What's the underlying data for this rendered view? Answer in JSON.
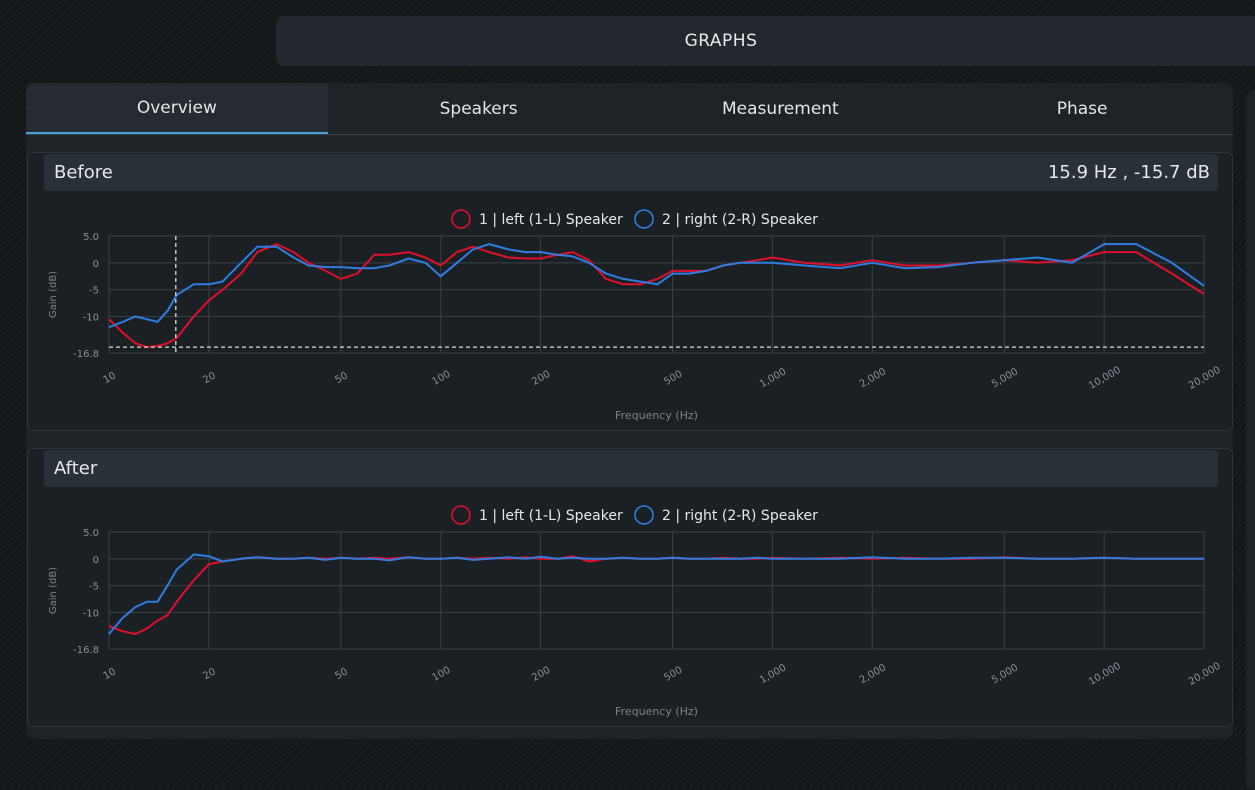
{
  "header": {
    "title": "GRAPHS"
  },
  "tabs": [
    "Overview",
    "Speakers",
    "Measurement",
    "Phase"
  ],
  "chart_data": [
    {
      "type": "line",
      "title": "Before",
      "cursor": {
        "x": 15.9,
        "y": -15.7,
        "label": "15.9 Hz , -15.7 dB"
      },
      "xlabel": "Frequency (Hz)",
      "ylabel": "Gain (dB)",
      "xscale": "log",
      "grid": true,
      "xlim": [
        10,
        20000
      ],
      "ylim": [
        -16.8,
        5
      ],
      "xticks": [
        10,
        20,
        50,
        100,
        200,
        500,
        {
          "value": 1000,
          "label": "1,000"
        },
        {
          "value": 2000,
          "label": "2,000"
        },
        {
          "value": 5000,
          "label": "5,000"
        },
        {
          "value": 10000,
          "label": "10,000"
        },
        {
          "value": 20000,
          "label": "20,000"
        }
      ],
      "yticks": [
        {
          "value": 5,
          "label": "5.0"
        },
        0,
        -5,
        -10,
        -16.8
      ],
      "x": [
        10,
        11,
        12,
        13,
        14,
        15,
        16,
        18,
        20,
        22,
        25,
        28,
        32,
        36,
        40,
        45,
        50,
        56,
        63,
        70,
        80,
        90,
        100,
        112,
        125,
        140,
        160,
        180,
        200,
        225,
        250,
        280,
        315,
        355,
        400,
        450,
        500,
        560,
        630,
        710,
        800,
        900,
        1000,
        1250,
        1600,
        2000,
        2500,
        3150,
        4000,
        5000,
        6300,
        8000,
        10000,
        12500,
        16000,
        20000
      ],
      "series": [
        {
          "name": "1 | left (1-L) Speaker",
          "color": "#e0102a",
          "values": [
            -10.5,
            -13,
            -15,
            -15.7,
            -15.5,
            -15,
            -14,
            -10,
            -7,
            -5,
            -2,
            2,
            3.5,
            2,
            0,
            -1.5,
            -3,
            -2,
            1.5,
            1.5,
            2,
            1,
            -0.5,
            2,
            3,
            2,
            1,
            0.8,
            0.8,
            1.5,
            2,
            0.5,
            -3,
            -4,
            -4,
            -3,
            -1.5,
            -1.5,
            -1.5,
            -0.5,
            0,
            0.5,
            1,
            0,
            -0.5,
            0.5,
            -0.5,
            -0.5,
            0,
            0.5,
            0,
            0.5,
            2,
            2,
            -2,
            -5.8
          ]
        },
        {
          "name": "2 | right (2-R) Speaker",
          "color": "#2f7de0",
          "values": [
            -12,
            -11,
            -10,
            -10.5,
            -11,
            -9,
            -6,
            -4,
            -4,
            -3.5,
            0,
            3,
            3,
            1,
            -0.5,
            -0.8,
            -0.8,
            -1,
            -1,
            -0.5,
            0.8,
            0,
            -2.5,
            0,
            2.5,
            3.5,
            2.5,
            2,
            2,
            1.5,
            1.2,
            0,
            -2,
            -3,
            -3.5,
            -4,
            -2,
            -2,
            -1.5,
            -0.5,
            0,
            0,
            0,
            -0.5,
            -1,
            0,
            -1,
            -0.8,
            0,
            0.5,
            1,
            0,
            3.5,
            3.5,
            0,
            -4.3
          ]
        }
      ]
    },
    {
      "type": "line",
      "title": "After",
      "xlabel": "Frequency (Hz)",
      "ylabel": "Gain (dB)",
      "xscale": "log",
      "grid": true,
      "xlim": [
        10,
        20000
      ],
      "ylim": [
        -16.8,
        5
      ],
      "xticks": [
        10,
        20,
        50,
        100,
        200,
        500,
        {
          "value": 1000,
          "label": "1,000"
        },
        {
          "value": 2000,
          "label": "2,000"
        },
        {
          "value": 5000,
          "label": "5,000"
        },
        {
          "value": 10000,
          "label": "10,000"
        },
        {
          "value": 20000,
          "label": "20,000"
        }
      ],
      "yticks": [
        {
          "value": 5,
          "label": "5.0"
        },
        0,
        -5,
        -10,
        -16.8
      ],
      "x": [
        10,
        11,
        12,
        13,
        14,
        15,
        16,
        18,
        20,
        22,
        25,
        28,
        32,
        36,
        40,
        45,
        50,
        56,
        63,
        70,
        80,
        90,
        100,
        112,
        125,
        140,
        160,
        180,
        200,
        225,
        250,
        280,
        315,
        355,
        400,
        450,
        500,
        560,
        630,
        710,
        800,
        900,
        1000,
        1250,
        1600,
        2000,
        2500,
        3150,
        4000,
        5000,
        6300,
        8000,
        10000,
        12500,
        16000,
        20000
      ],
      "series": [
        {
          "name": "1 | left (1-L) Speaker",
          "color": "#e0102a",
          "values": [
            -12.5,
            -13.5,
            -14,
            -13,
            -11.5,
            -10.5,
            -8,
            -4,
            -1,
            -0.5,
            0,
            0.3,
            0,
            0,
            0.2,
            0,
            0.2,
            0,
            0.2,
            0,
            0.3,
            0,
            0,
            0.2,
            0,
            0.2,
            0,
            0.3,
            0,
            0,
            0.5,
            -0.5,
            0,
            0.2,
            0,
            0,
            0.2,
            0,
            0,
            0.2,
            0,
            0,
            0.2,
            0,
            0.2,
            0,
            0.2,
            0,
            0,
            0.3,
            0,
            0,
            0.2,
            0,
            0,
            0
          ]
        },
        {
          "name": "2 | right (2-R) Speaker",
          "color": "#2f7de0",
          "values": [
            -14,
            -11,
            -9,
            -8,
            -8,
            -5,
            -2,
            0.8,
            0.5,
            -0.5,
            0,
            0.3,
            0,
            0,
            0.2,
            -0.2,
            0.2,
            0,
            0,
            -0.3,
            0.3,
            0,
            0,
            0.2,
            -0.2,
            0,
            0.3,
            0,
            0.4,
            0,
            0.2,
            0,
            0,
            0.2,
            0,
            0,
            0.2,
            0,
            0,
            0,
            0,
            0.2,
            0,
            0,
            0,
            0.3,
            0,
            0,
            0.2,
            0.2,
            0,
            0,
            0.2,
            0,
            0,
            0
          ]
        }
      ]
    }
  ]
}
